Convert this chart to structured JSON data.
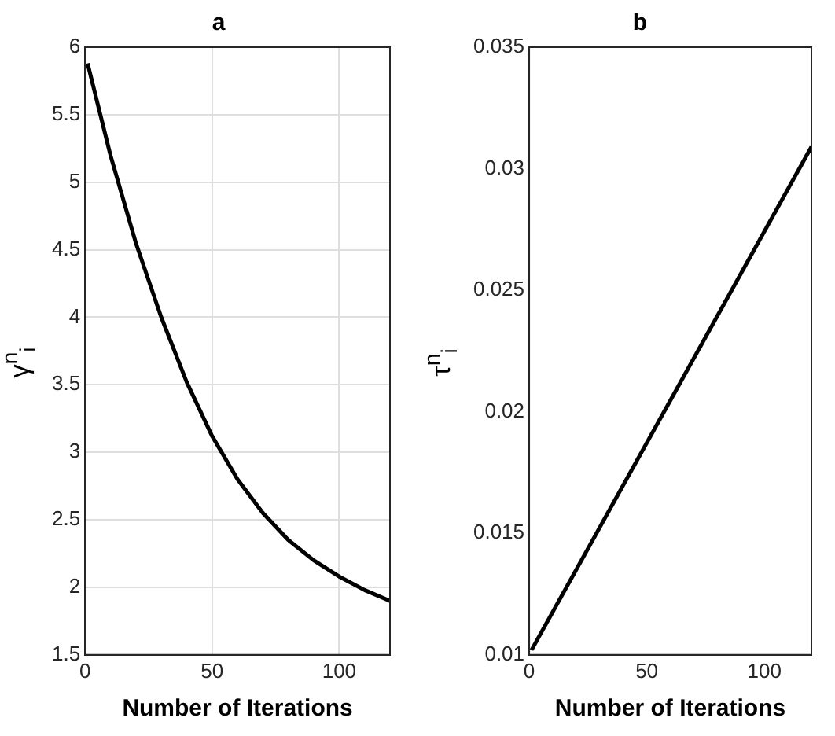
{
  "chart_data": [
    {
      "type": "line",
      "title": "a",
      "xlabel": "Number of Iterations",
      "ylabel": "γ$^{n}$$_{i}$",
      "x": [
        1,
        10,
        20,
        30,
        40,
        50,
        60,
        70,
        80,
        90,
        100,
        110,
        120
      ],
      "series": [
        {
          "color": "#000000",
          "values": [
            5.88,
            5.2,
            4.55,
            4.0,
            3.52,
            3.12,
            2.8,
            2.55,
            2.35,
            2.2,
            2.08,
            1.98,
            1.9
          ]
        }
      ],
      "xlim": [
        0,
        120
      ],
      "ylim": [
        1.5,
        6
      ],
      "xticks": [
        0,
        50,
        100
      ],
      "yticks": [
        1.5,
        2,
        2.5,
        3,
        3.5,
        4,
        4.5,
        5,
        5.5,
        6
      ],
      "grid": true
    },
    {
      "type": "line",
      "title": "b",
      "xlabel": "Number of Iterations",
      "ylabel": "τ$^{n}$$_{i}$",
      "x": [
        1,
        120
      ],
      "series": [
        {
          "color": "#000000",
          "values": [
            0.0102,
            0.0309
          ]
        }
      ],
      "xlim": [
        0,
        120
      ],
      "ylim": [
        0.01,
        0.035
      ],
      "xticks": [
        0,
        50,
        100
      ],
      "yticks": [
        0.01,
        0.015,
        0.02,
        0.025,
        0.03,
        0.035
      ],
      "grid": false
    }
  ]
}
